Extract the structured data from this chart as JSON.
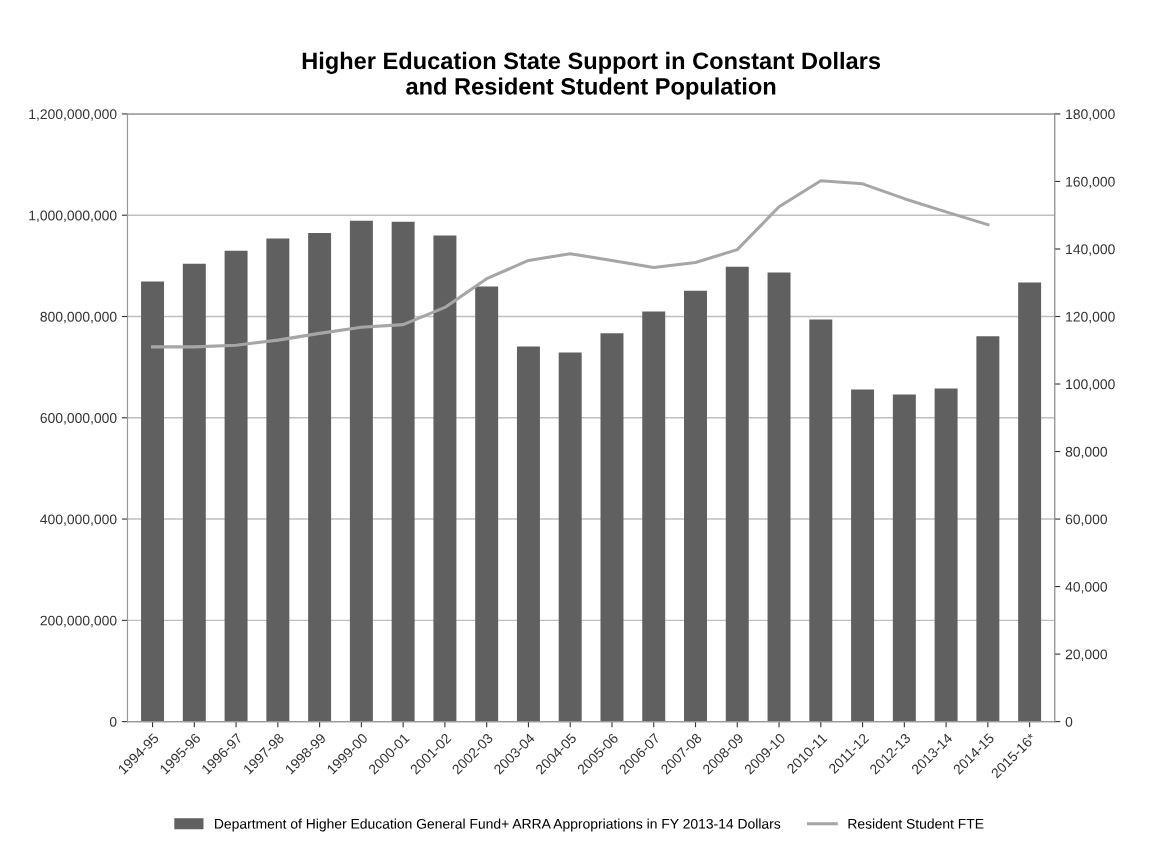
{
  "chart_data": {
    "type": "bar",
    "title": "Higher Education State Support in Constant Dollars\nand Resident Student Population",
    "categories": [
      "1994-95",
      "1995-96",
      "1996-97",
      "1997-98",
      "1998-99",
      "1999-00",
      "2000-01",
      "2001-02",
      "2002-03",
      "2003-04",
      "2004-05",
      "2005-06",
      "2006-07",
      "2007-08",
      "2008-09",
      "2009-10",
      "2010-11",
      "2011-12",
      "2012-13",
      "2013-14",
      "2014-15",
      "2015-16*"
    ],
    "series": [
      {
        "name": "Department of Higher Education General Fund+ ARRA Appropriations in FY 2013-14 Dollars",
        "color": "#606060",
        "values": [
          869000000,
          904000000,
          930000000,
          954000000,
          965000000,
          989000000,
          987000000,
          960000000,
          859000000,
          741000000,
          729000000,
          767000000,
          810000000,
          851000000,
          898000000,
          887000000,
          794000000,
          656000000,
          646000000,
          658000000,
          761000000,
          867000000
        ]
      },
      {
        "name": "Resident Student FTE",
        "type": "line",
        "axis": "y2",
        "color": "#a6a6a6",
        "values": [
          111000,
          111000,
          111500,
          113000,
          115000,
          116800,
          117600,
          122700,
          131200,
          136600,
          138600,
          136600,
          134500,
          136000,
          139800,
          152500,
          160200,
          159300,
          154900,
          151000,
          147200,
          null
        ]
      }
    ],
    "ylim": [
      0,
      1200000000
    ],
    "yticks": [
      {
        "value": 0,
        "label": "0"
      },
      {
        "value": 200000000,
        "label": "200,000,000"
      },
      {
        "value": 400000000,
        "label": "400,000,000"
      },
      {
        "value": 600000000,
        "label": "600,000,000"
      },
      {
        "value": 800000000,
        "label": "800,000,000"
      },
      {
        "value": 1000000000,
        "label": "1,000,000,000"
      },
      {
        "value": 1200000000,
        "label": "1,200,000,000"
      }
    ],
    "y2lim": [
      0,
      180000
    ],
    "y2ticks": [
      {
        "value": 0,
        "label": "0"
      },
      {
        "value": 20000,
        "label": "20,000"
      },
      {
        "value": 40000,
        "label": "40,000"
      },
      {
        "value": 60000,
        "label": "60,000"
      },
      {
        "value": 80000,
        "label": "80,000"
      },
      {
        "value": 100000,
        "label": "100,000"
      },
      {
        "value": 120000,
        "label": "120,000"
      },
      {
        "value": 140000,
        "label": "140,000"
      },
      {
        "value": 160000,
        "label": "160,000"
      },
      {
        "value": 180000,
        "label": "180,000"
      }
    ],
    "grid": "y",
    "legend": "bottom",
    "marker": "none",
    "line_style": "solid"
  }
}
